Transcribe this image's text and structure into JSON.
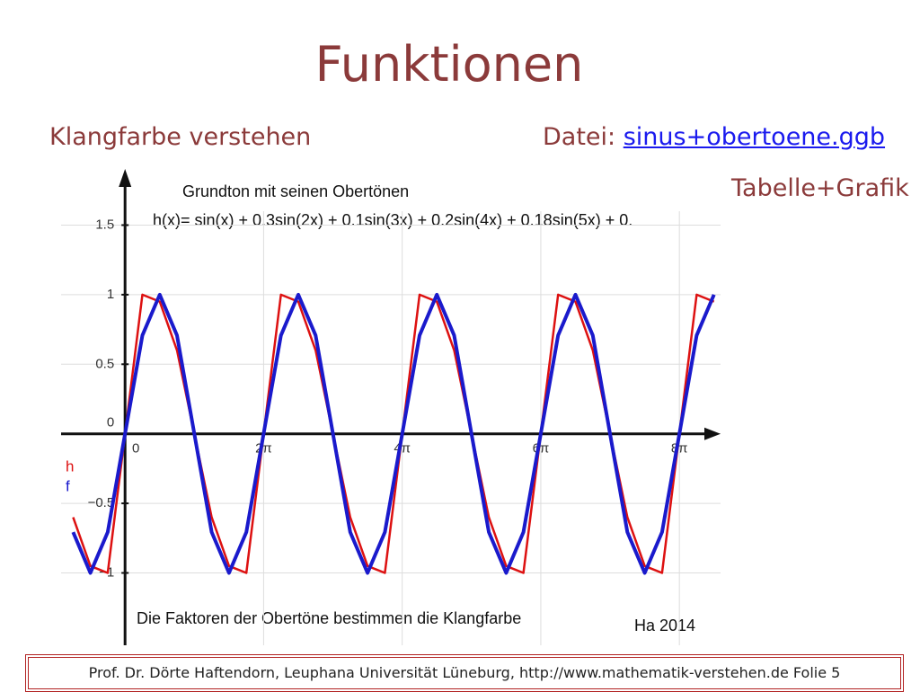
{
  "title": "Funktionen",
  "subtitle": "Klangfarbe verstehen",
  "file_label": "Datei:",
  "file_link": "sinus+obertoene.ggb",
  "note": "Tabelle+Grafik",
  "footer": "Prof. Dr. Dörte Haftendorn, Leuphana Universität Lüneburg,  http://www.mathematik-verstehen.de    Folie 5",
  "chart_data": {
    "type": "line",
    "title": "Grundton mit seinen Obertönen",
    "subtitle": "h(x)= sin(x) + 0.3sin(2x) + 0.1sin(3x) + 0.2sin(4x) + 0.18sin(5x) + 0.",
    "annotation": "Die Faktoren der Obertöne bestimmen die Klangfarbe",
    "credit": "Ha 2014",
    "x": [
      -2.356,
      -1.571,
      -0.785,
      0,
      0.785,
      1.571,
      2.356,
      3.142,
      3.927,
      4.712,
      5.498,
      6.283,
      7.069,
      7.854,
      8.639,
      9.425,
      10.21,
      10.996,
      11.781,
      12.566,
      13.352,
      14.137,
      14.923,
      15.708,
      16.493,
      17.279,
      18.064,
      18.85,
      19.635,
      20.42,
      21.206,
      21.991,
      22.777,
      23.562,
      24.347,
      25.133,
      25.918,
      26.704
    ],
    "series": [
      {
        "name": "h",
        "color": "#dd1111",
        "values": [
          -0.6,
          -0.95,
          -1.0,
          0,
          1.0,
          0.95,
          0.6,
          0,
          -0.6,
          -0.95,
          -1.0,
          0,
          1.0,
          0.95,
          0.6,
          0,
          -0.6,
          -0.95,
          -1.0,
          0,
          1.0,
          0.95,
          0.6,
          0,
          -0.6,
          -0.95,
          -1.0,
          0,
          1.0,
          0.95,
          0.6,
          0,
          -0.6,
          -0.95,
          -1.0,
          0,
          1.0,
          0.95
        ]
      },
      {
        "name": "f",
        "color": "#1a1acc",
        "values": [
          -0.707,
          -1,
          -0.707,
          0,
          0.707,
          1,
          0.707,
          0,
          -0.707,
          -1,
          -0.707,
          0,
          0.707,
          1,
          0.707,
          0,
          -0.707,
          -1,
          -0.707,
          0,
          0.707,
          1,
          0.707,
          0,
          -0.707,
          -1,
          -0.707,
          0,
          0.707,
          1,
          0.707,
          0,
          -0.707,
          -1,
          -0.707,
          0,
          0.707,
          1
        ]
      }
    ],
    "xlim": [
      -2.9,
      27
    ],
    "ylim": [
      -1.52,
      1.6
    ],
    "xticks": [
      0,
      {
        "value": 6.283,
        "label": "2π"
      },
      {
        "value": 12.566,
        "label": "4π"
      },
      {
        "value": 18.85,
        "label": "6π"
      },
      {
        "value": 25.133,
        "label": "8π"
      }
    ],
    "yticks": [
      {
        "value": -1,
        "label": "−1"
      },
      {
        "value": -0.5,
        "label": "−0.5"
      },
      0,
      0.5,
      1,
      1.5
    ],
    "grid": true
  }
}
